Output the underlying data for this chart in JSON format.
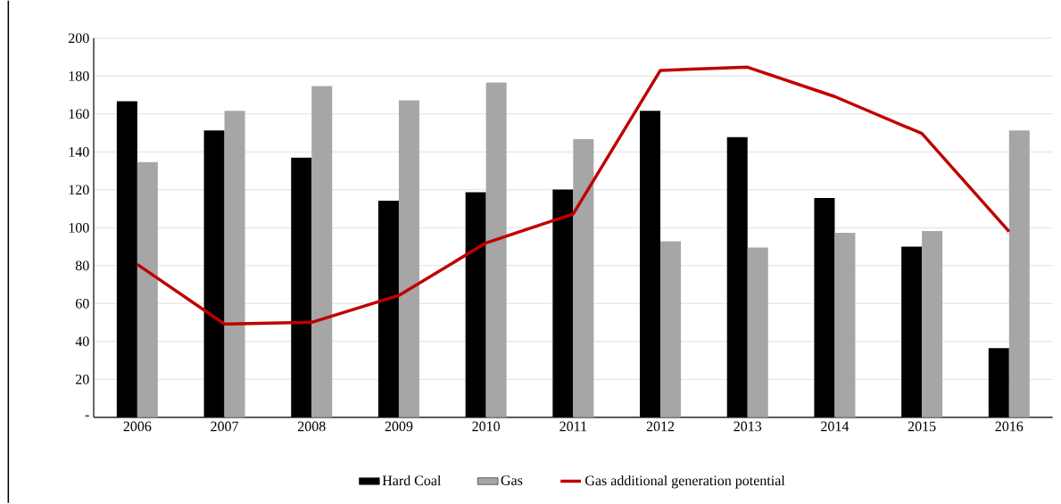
{
  "chart_data": {
    "type": "bar",
    "categories": [
      "2006",
      "2007",
      "2008",
      "2009",
      "2010",
      "2011",
      "2012",
      "2013",
      "2014",
      "2015",
      "2016"
    ],
    "series": [
      {
        "name": "Hard Coal",
        "color": "#000000",
        "values": [
          166.7,
          151.3,
          137,
          114.3,
          118.7,
          120.1,
          161.7,
          147.8,
          115.7,
          90,
          36.5
        ]
      },
      {
        "name": "Gas",
        "color": "#a6a6a6",
        "values": [
          134.6,
          161.7,
          174.7,
          167.2,
          176.6,
          146.7,
          92.9,
          89.5,
          97.3,
          98.2,
          151.3
        ]
      },
      {
        "name": "Gas additional generation potential",
        "type": "line",
        "color": "#c00000",
        "values": [
          80.7,
          49.2,
          50.1,
          64.3,
          92,
          107.3,
          183,
          184.7,
          169.2,
          149.7,
          98
        ]
      }
    ],
    "ylim": [
      0,
      200
    ],
    "yticks": [
      {
        "value": 0,
        "label": "-"
      },
      20,
      40,
      60,
      80,
      100,
      120,
      140,
      160,
      180,
      200
    ],
    "grid": "y",
    "legend": "bottom",
    "marker": "none"
  }
}
